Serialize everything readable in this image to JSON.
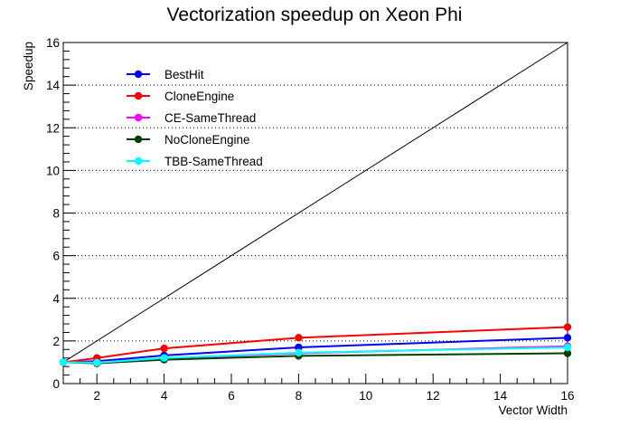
{
  "chart_data": {
    "type": "line",
    "title": "Vectorization speedup on Xeon Phi",
    "xlabel": "Vector Width",
    "ylabel": "Speedup",
    "xlim": [
      1,
      16
    ],
    "ylim": [
      0,
      16
    ],
    "x_ticks": [
      2,
      4,
      6,
      8,
      10,
      12,
      14,
      16
    ],
    "y_ticks": [
      0,
      2,
      4,
      6,
      8,
      10,
      12,
      14,
      16
    ],
    "grid": "horizontal-dotted",
    "reference_line": {
      "x": [
        1,
        16
      ],
      "y": [
        1,
        16
      ],
      "color": "#000000"
    },
    "legend_position": "top-left",
    "x": [
      1,
      2,
      4,
      8,
      16
    ],
    "series": [
      {
        "name": "BestHit",
        "color": "#0000ff",
        "values": [
          1.0,
          1.05,
          1.32,
          1.7,
          2.15
        ]
      },
      {
        "name": "CloneEngine",
        "color": "#ff0000",
        "values": [
          1.0,
          1.2,
          1.65,
          2.15,
          2.65
        ]
      },
      {
        "name": "CE-SameThread",
        "color": "#ff00ff",
        "values": [
          1.0,
          1.0,
          1.18,
          1.42,
          1.75
        ]
      },
      {
        "name": "NoCloneEngine",
        "color": "#004000",
        "values": [
          1.0,
          0.95,
          1.12,
          1.3,
          1.42
        ]
      },
      {
        "name": "TBB-SameThread",
        "color": "#00ffff",
        "values": [
          1.0,
          0.98,
          1.2,
          1.45,
          1.7
        ]
      }
    ]
  }
}
